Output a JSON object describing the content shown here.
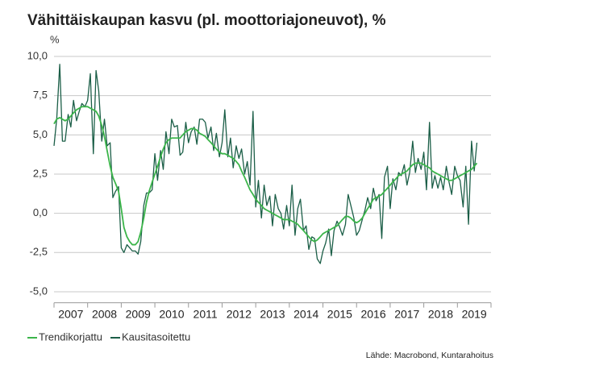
{
  "chart_data": {
    "type": "line",
    "title": "Vähittäiskaupan kasvu (pl. moottoriajoneuvot), %",
    "y_unit": "%",
    "source": "Lähde: Macrobond, Kuntarahoitus",
    "legend": "bottom-left",
    "grid": true,
    "xlim": [
      2007,
      2020
    ],
    "xticks": [
      2007,
      2008,
      2009,
      2010,
      2011,
      2012,
      2013,
      2014,
      2015,
      2016,
      2017,
      2018,
      2019
    ],
    "ylim": [
      -5.7,
      10
    ],
    "yticks": [
      {
        "value": -5,
        "label": "-5,0"
      },
      {
        "value": -2.5,
        "label": "-2,5"
      },
      {
        "value": 0,
        "label": "0,0"
      },
      {
        "value": 2.5,
        "label": "2,5"
      },
      {
        "value": 5,
        "label": "5,0"
      },
      {
        "value": 7.5,
        "label": "7,5"
      },
      {
        "value": 10,
        "label": "10,0"
      }
    ],
    "x": [
      2007.0,
      2007.08,
      2007.17,
      2007.25,
      2007.33,
      2007.42,
      2007.5,
      2007.58,
      2007.67,
      2007.75,
      2007.83,
      2007.92,
      2008.0,
      2008.08,
      2008.17,
      2008.25,
      2008.33,
      2008.42,
      2008.5,
      2008.58,
      2008.67,
      2008.75,
      2008.83,
      2008.92,
      2009.0,
      2009.08,
      2009.17,
      2009.25,
      2009.33,
      2009.42,
      2009.5,
      2009.58,
      2009.67,
      2009.75,
      2009.83,
      2009.92,
      2010.0,
      2010.08,
      2010.17,
      2010.25,
      2010.33,
      2010.42,
      2010.5,
      2010.58,
      2010.67,
      2010.75,
      2010.83,
      2010.92,
      2011.0,
      2011.08,
      2011.17,
      2011.25,
      2011.33,
      2011.42,
      2011.5,
      2011.58,
      2011.67,
      2011.75,
      2011.83,
      2011.92,
      2012.0,
      2012.08,
      2012.17,
      2012.25,
      2012.33,
      2012.42,
      2012.5,
      2012.58,
      2012.67,
      2012.75,
      2012.83,
      2012.92,
      2013.0,
      2013.08,
      2013.17,
      2013.25,
      2013.33,
      2013.42,
      2013.5,
      2013.58,
      2013.67,
      2013.75,
      2013.83,
      2013.92,
      2014.0,
      2014.08,
      2014.17,
      2014.25,
      2014.33,
      2014.42,
      2014.5,
      2014.58,
      2014.67,
      2014.75,
      2014.83,
      2014.92,
      2015.0,
      2015.08,
      2015.17,
      2015.25,
      2015.33,
      2015.42,
      2015.5,
      2015.58,
      2015.67,
      2015.75,
      2015.83,
      2015.92,
      2016.0,
      2016.08,
      2016.17,
      2016.25,
      2016.33,
      2016.42,
      2016.5,
      2016.58,
      2016.67,
      2016.75,
      2016.83,
      2016.92,
      2017.0,
      2017.08,
      2017.17,
      2017.25,
      2017.33,
      2017.42,
      2017.5,
      2017.58,
      2017.67,
      2017.75,
      2017.83,
      2017.92,
      2018.0,
      2018.08,
      2018.17,
      2018.25,
      2018.33,
      2018.42,
      2018.5,
      2018.58,
      2018.67,
      2018.75,
      2018.83,
      2018.92,
      2019.0,
      2019.08,
      2019.17,
      2019.25,
      2019.33,
      2019.42,
      2019.5,
      2019.58
    ],
    "series": [
      {
        "name": "Trendikorjattu",
        "color": "#3bb54a",
        "width": 1.8,
        "values": [
          5.7,
          6.0,
          6.1,
          6.0,
          5.9,
          6.0,
          6.2,
          6.4,
          6.6,
          6.7,
          6.8,
          6.8,
          6.8,
          6.7,
          6.6,
          6.5,
          6.2,
          5.6,
          4.9,
          4.0,
          3.0,
          2.3,
          1.9,
          1.4,
          0.3,
          -0.9,
          -1.5,
          -1.8,
          -2.0,
          -2.0,
          -1.8,
          -1.2,
          -0.3,
          0.7,
          1.4,
          2.0,
          2.5,
          3.0,
          3.6,
          4.1,
          4.5,
          4.7,
          4.8,
          4.8,
          4.8,
          4.8,
          5.0,
          5.2,
          5.3,
          5.4,
          5.4,
          5.3,
          5.1,
          5.0,
          4.9,
          4.7,
          4.5,
          4.3,
          4.1,
          3.9,
          3.8,
          3.8,
          3.7,
          3.6,
          3.5,
          3.3,
          3.1,
          2.7,
          2.3,
          1.9,
          1.5,
          1.2,
          0.9,
          0.7,
          0.5,
          0.3,
          0.2,
          0.1,
          0.0,
          -0.1,
          -0.2,
          -0.3,
          -0.4,
          -0.4,
          -0.4,
          -0.5,
          -0.6,
          -0.7,
          -0.9,
          -1.1,
          -1.3,
          -1.5,
          -1.7,
          -1.8,
          -1.7,
          -1.5,
          -1.3,
          -1.2,
          -1.1,
          -1.0,
          -0.9,
          -0.8,
          -0.6,
          -0.4,
          -0.2,
          -0.2,
          -0.3,
          -0.5,
          -0.6,
          -0.5,
          -0.3,
          0.0,
          0.3,
          0.6,
          0.9,
          1.0,
          1.1,
          1.2,
          1.4,
          1.6,
          1.8,
          2.0,
          2.2,
          2.4,
          2.5,
          2.6,
          2.7,
          2.9,
          3.1,
          3.2,
          3.2,
          3.2,
          3.1,
          3.0,
          2.9,
          2.7,
          2.6,
          2.5,
          2.4,
          2.3,
          2.2,
          2.1,
          2.1,
          2.2,
          2.3,
          2.4,
          2.5,
          2.6,
          2.7,
          2.8,
          3.0,
          3.2
        ]
      },
      {
        "name": "Kausitasoitettu",
        "color": "#1b5e47",
        "width": 1.3,
        "values": [
          4.3,
          6.0,
          9.5,
          4.6,
          4.6,
          6.3,
          5.5,
          7.2,
          5.9,
          6.5,
          7.0,
          6.8,
          7.2,
          8.9,
          3.8,
          9.1,
          7.8,
          4.6,
          6.0,
          4.3,
          4.5,
          1.0,
          1.4,
          1.7,
          -2.2,
          -2.5,
          -2.0,
          -2.2,
          -2.4,
          -2.4,
          -2.6,
          -1.8,
          0.5,
          1.3,
          1.3,
          1.5,
          3.8,
          2.1,
          4.0,
          2.8,
          5.2,
          3.8,
          6.0,
          5.5,
          5.6,
          3.7,
          3.9,
          5.8,
          4.5,
          5.2,
          5.5,
          4.4,
          6.0,
          6.0,
          5.8,
          4.8,
          5.5,
          4.0,
          5.1,
          3.6,
          4.5,
          6.6,
          3.6,
          4.8,
          2.9,
          4.3,
          3.5,
          4.1,
          2.5,
          3.3,
          1.8,
          6.5,
          0.4,
          2.1,
          -0.3,
          1.8,
          0.5,
          1.1,
          -0.8,
          1.2,
          0.3,
          0.0,
          -1.0,
          0.5,
          -0.8,
          1.8,
          -1.4,
          0.3,
          0.9,
          -1.1,
          -0.8,
          -2.3,
          -1.5,
          -1.6,
          -2.9,
          -3.2,
          -2.4,
          -1.9,
          -1.0,
          -2.7,
          -1.1,
          -0.5,
          -0.9,
          -1.4,
          -0.7,
          1.2,
          0.5,
          -0.3,
          -1.4,
          -1.1,
          -0.4,
          0.2,
          1.0,
          0.3,
          1.6,
          0.8,
          1.2,
          -1.6,
          2.3,
          3.0,
          0.3,
          2.2,
          1.5,
          2.6,
          2.4,
          3.1,
          1.8,
          2.6,
          4.6,
          2.6,
          3.5,
          2.8,
          3.9,
          1.5,
          5.8,
          1.6,
          2.4,
          1.6,
          2.3,
          1.5,
          3.0,
          2.0,
          1.2,
          3.0,
          2.4,
          2.1,
          0.4,
          3.0,
          -0.7,
          4.6,
          2.7,
          4.5
        ]
      }
    ]
  }
}
